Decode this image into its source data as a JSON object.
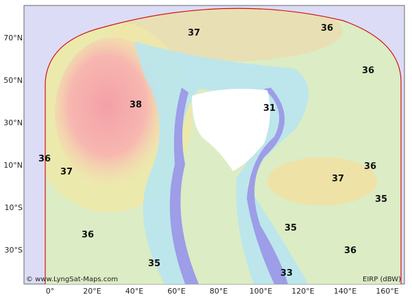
{
  "map": {
    "x_labels": [
      "0°",
      "20°E",
      "40°E",
      "60°E",
      "80°E",
      "100°E",
      "120°E",
      "140°E",
      "160°E"
    ],
    "y_labels": [
      "70°N",
      "50°N",
      "30°N",
      "10°N",
      "10°S",
      "30°S"
    ],
    "contour_labels": [
      37,
      36,
      36,
      38,
      31,
      36,
      37,
      36,
      37,
      35,
      35,
      36,
      36,
      35,
      33
    ],
    "credit": "© www.LyngSat-Maps.com",
    "unit": "EIRP (dBW)"
  }
}
